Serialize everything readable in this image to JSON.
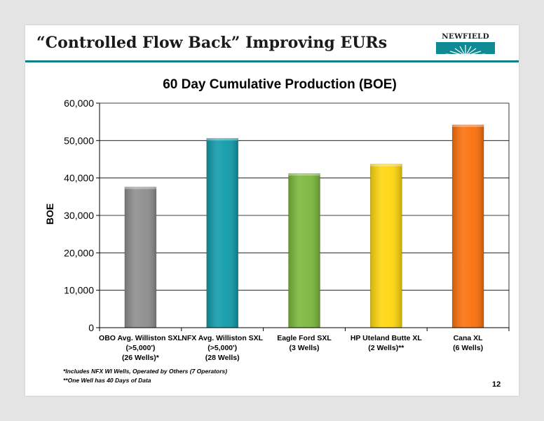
{
  "slide": {
    "title": "“Controlled Flow Back” Improving EURs",
    "logo_text": "NEWFIELD",
    "page_number": "12",
    "footnotes": [
      "*Includes NFX WI Wells, Operated by Others (7 Operators)",
      "**One Well has 40 Days of Data"
    ]
  },
  "chart_data": {
    "type": "bar",
    "title": "60 Day Cumulative Production (BOE)",
    "ylabel": "BOE",
    "xlabel": "",
    "ylim": [
      0,
      60000
    ],
    "yticks": [
      0,
      10000,
      20000,
      30000,
      40000,
      50000,
      60000
    ],
    "ytick_labels": [
      "0",
      "10,000",
      "20,000",
      "30,000",
      "40,000",
      "50,000",
      "60,000"
    ],
    "grid": "horizontal",
    "categories": [
      [
        "OBO Avg. Williston SXL",
        "(>5,000')",
        "(26 Wells)*"
      ],
      [
        "NFX Avg. Williston SXL",
        "(>5,000')",
        "(28 Wells)"
      ],
      [
        "Eagle Ford SXL",
        "(3 Wells)"
      ],
      [
        "HP Uteland Butte XL",
        "(2 Wells)**"
      ],
      [
        "Cana XL",
        "(6 Wells)"
      ]
    ],
    "values": [
      37600,
      50600,
      41200,
      43700,
      54200
    ],
    "colors": [
      "#8c8c8c",
      "#0e9aa8",
      "#7ab63a",
      "#fed60a",
      "#fb6f08"
    ]
  }
}
